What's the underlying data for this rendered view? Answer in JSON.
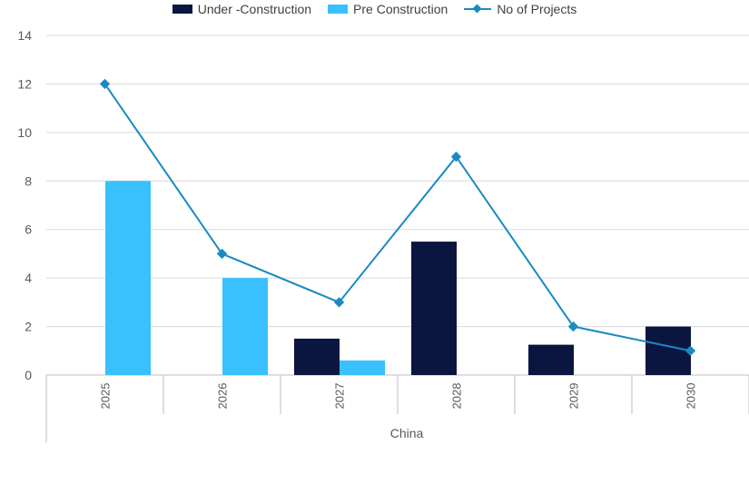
{
  "chart_data": {
    "type": "bar",
    "categories": [
      "2025",
      "2026",
      "2027",
      "2028",
      "2029",
      "2030"
    ],
    "group_label": "China",
    "series": [
      {
        "name": "Under -Construction",
        "type": "bar",
        "color": "#0b1640",
        "values": [
          0,
          0,
          1.5,
          5.5,
          1.25,
          2
        ]
      },
      {
        "name": "Pre Construction",
        "type": "bar",
        "color": "#38c0ff",
        "values": [
          8,
          4,
          0.6,
          0,
          0,
          0
        ]
      },
      {
        "name": "No of Projects",
        "type": "line",
        "color": "#1b8ac2",
        "values": [
          12,
          5,
          3,
          9,
          2,
          1
        ]
      }
    ],
    "ylim": [
      0,
      14
    ],
    "yticks": [
      "0",
      "2",
      "4",
      "6",
      "8",
      "10",
      "12",
      "14"
    ],
    "grid": true,
    "legend": "top-center"
  }
}
